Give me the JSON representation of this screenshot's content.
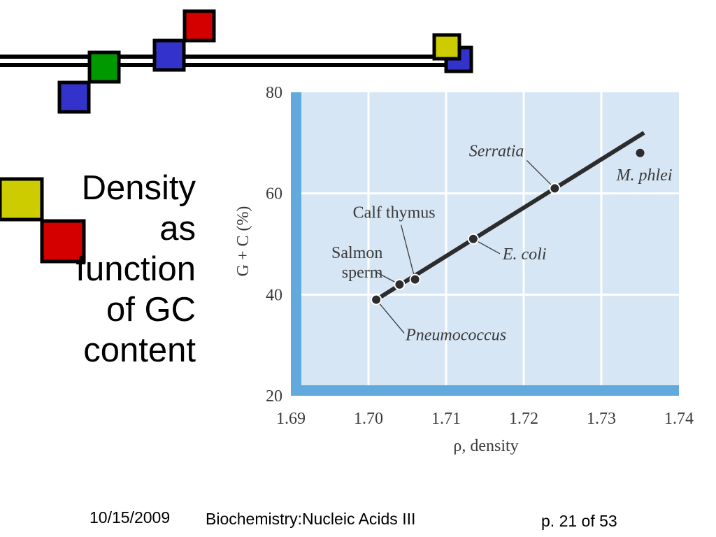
{
  "slide": {
    "title_lines": [
      "Density",
      "as",
      "function",
      "of GC",
      "content"
    ],
    "footer_date": "10/15/2009",
    "footer_course": "Biochemistry:Nucleic Acids III",
    "footer_page": "p. 21 of 53"
  },
  "colors": {
    "plot_bg": "#d6e6f4",
    "axis_bar": "#62a9de",
    "grid": "#ffffff",
    "line": "#2c2c2c",
    "deco_red": "#d40000",
    "deco_blue": "#3333cc",
    "deco_green": "#009a00",
    "deco_yellow": "#cccc00"
  },
  "chart_data": {
    "type": "scatter",
    "title": "",
    "xlabel": "ρ, density",
    "ylabel": "G + C (%)",
    "xlim": [
      1.69,
      1.74
    ],
    "ylim": [
      20,
      80
    ],
    "xticks": [
      "1.69",
      "1.70",
      "1.71",
      "1.72",
      "1.73",
      "1.74"
    ],
    "yticks": [
      "20",
      "40",
      "60",
      "80"
    ],
    "grid": true,
    "fit_line": {
      "x": [
        1.701,
        1.7355
      ],
      "y": [
        39,
        72
      ]
    },
    "points": [
      {
        "label": "Pneumococcus",
        "italic": true,
        "x": 1.701,
        "y": 39
      },
      {
        "label": "Salmon sperm",
        "italic": false,
        "x": 1.704,
        "y": 42
      },
      {
        "label": "Calf thymus",
        "italic": false,
        "x": 1.706,
        "y": 43
      },
      {
        "label": "E. coli",
        "italic": true,
        "x": 1.7135,
        "y": 51
      },
      {
        "label": "Serratia",
        "italic": true,
        "x": 1.724,
        "y": 61
      },
      {
        "label": "M. phlei",
        "italic": true,
        "x": 1.735,
        "y": 68
      }
    ]
  }
}
